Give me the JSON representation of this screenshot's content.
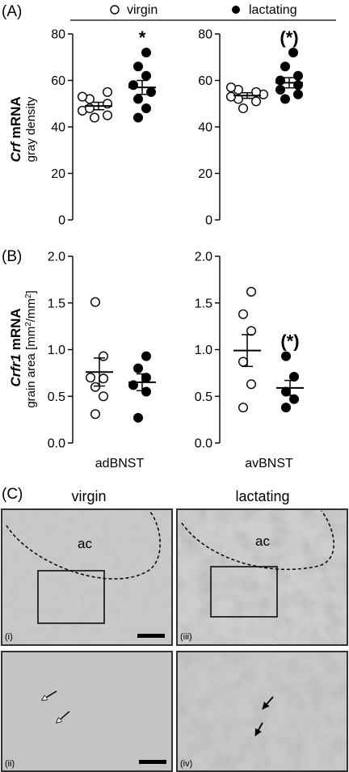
{
  "figure": {
    "panels": {
      "a": "(A)",
      "b": "(B)",
      "c": "(C)"
    },
    "legend": [
      {
        "label": "virgin",
        "marker": "open-circle"
      },
      {
        "label": "lactating",
        "marker": "filled-circle"
      }
    ],
    "colors": {
      "open_fill": "#ffffff",
      "filled": "#000000",
      "stroke": "#000000"
    }
  },
  "chart_data": [
    {
      "type": "scatter",
      "panel": "(A)",
      "region": "adBNST",
      "ylabel_gene": "Crf",
      "ylabel_rest": " mRNA",
      "ylabel2": "gray density",
      "ylim": [
        0,
        80
      ],
      "yticks": [
        "0",
        "20",
        "40",
        "60",
        "80"
      ],
      "significance": "*",
      "series": [
        {
          "name": "virgin",
          "values": [
            44,
            45,
            47,
            48,
            50,
            52,
            53,
            55
          ],
          "mean": 49,
          "sem": 1.6
        },
        {
          "name": "lactating",
          "values": [
            44,
            48,
            52,
            55,
            58,
            62,
            66,
            72
          ],
          "mean": 57,
          "sem": 3.0
        }
      ]
    },
    {
      "type": "scatter",
      "panel": "(A)",
      "region": "avBNST",
      "ylim": [
        0,
        80
      ],
      "yticks": [
        "0",
        "20",
        "40",
        "60",
        "80"
      ],
      "significance": "(*)",
      "series": [
        {
          "name": "virgin",
          "values": [
            48,
            51,
            52,
            53,
            54,
            55,
            56,
            57
          ],
          "mean": 53.5,
          "sem": 1.2
        },
        {
          "name": "lactating",
          "values": [
            52,
            54,
            56,
            58,
            60,
            62,
            66,
            72
          ],
          "mean": 59,
          "sem": 2.2
        }
      ]
    },
    {
      "type": "scatter",
      "panel": "(B)",
      "region": "adBNST",
      "ylabel_gene": "Crfr1",
      "ylabel_rest": " mRNA",
      "ylabel2": "grain area [mm²/mm²]",
      "ylim": [
        0,
        2.0
      ],
      "yticks": [
        "0.0",
        "0.5",
        "1.0",
        "1.5",
        "2.0"
      ],
      "significance": "",
      "series": [
        {
          "name": "virgin",
          "values": [
            0.31,
            0.5,
            0.6,
            0.69,
            0.7,
            0.93,
            1.51
          ],
          "mean": 0.76,
          "sem": 0.15
        },
        {
          "name": "lactating",
          "values": [
            0.27,
            0.55,
            0.62,
            0.7,
            0.8,
            0.93
          ],
          "mean": 0.65,
          "sem": 0.09
        }
      ]
    },
    {
      "type": "scatter",
      "panel": "(B)",
      "region": "avBNST",
      "ylim": [
        0,
        2.0
      ],
      "yticks": [
        "0.0",
        "0.5",
        "1.0",
        "1.5",
        "2.0"
      ],
      "significance": "(*)",
      "series": [
        {
          "name": "virgin",
          "values": [
            0.38,
            0.63,
            0.87,
            1.2,
            1.38,
            1.62
          ],
          "mean": 0.99,
          "sem": 0.17
        },
        {
          "name": "lactating",
          "values": [
            0.38,
            0.47,
            0.55,
            0.71,
            0.93
          ],
          "mean": 0.59,
          "sem": 0.08
        }
      ]
    }
  ],
  "micrographs": {
    "headers": [
      "virgin",
      "lactating"
    ],
    "ac_label": "ac",
    "roman": [
      "(i)",
      "(ii)",
      "(iii)",
      "(iv)"
    ]
  }
}
